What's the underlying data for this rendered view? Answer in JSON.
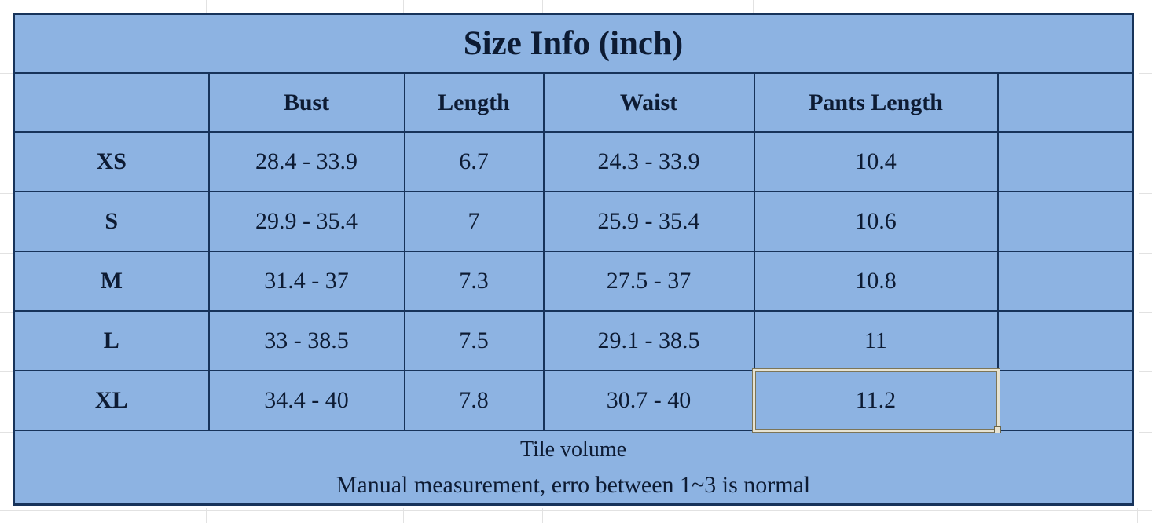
{
  "colors": {
    "table_fill": "#8db3e2",
    "table_border": "#17335a",
    "text": "#0d1b33",
    "selection_border": "#e7e3d2",
    "margin_gridline": "#e2e2e2"
  },
  "chart_data": {
    "type": "table",
    "title": "Size Info (inch)",
    "columns": [
      "",
      "Bust",
      "Length",
      "Waist",
      "Pants Length",
      ""
    ],
    "rows": [
      [
        "XS",
        "28.4 - 33.9",
        "6.7",
        "24.3 - 33.9",
        "10.4",
        ""
      ],
      [
        "S",
        "29.9 - 35.4",
        "7",
        "25.9 - 35.4",
        "10.6",
        ""
      ],
      [
        "M",
        "31.4 - 37",
        "7.3",
        "27.5 - 37",
        "10.8",
        ""
      ],
      [
        "L",
        "33 - 38.5",
        "7.5",
        "29.1 - 38.5",
        "11",
        ""
      ],
      [
        "XL",
        "34.4 - 40",
        "7.8",
        "30.7 - 40",
        "11.2",
        ""
      ]
    ],
    "footer_lines": [
      "Tile volume",
      "Manual measurement, erro between 1~3 is normal"
    ],
    "selected_cell": {
      "row": "XL",
      "column": "Pants Length",
      "value": "11.2"
    }
  }
}
